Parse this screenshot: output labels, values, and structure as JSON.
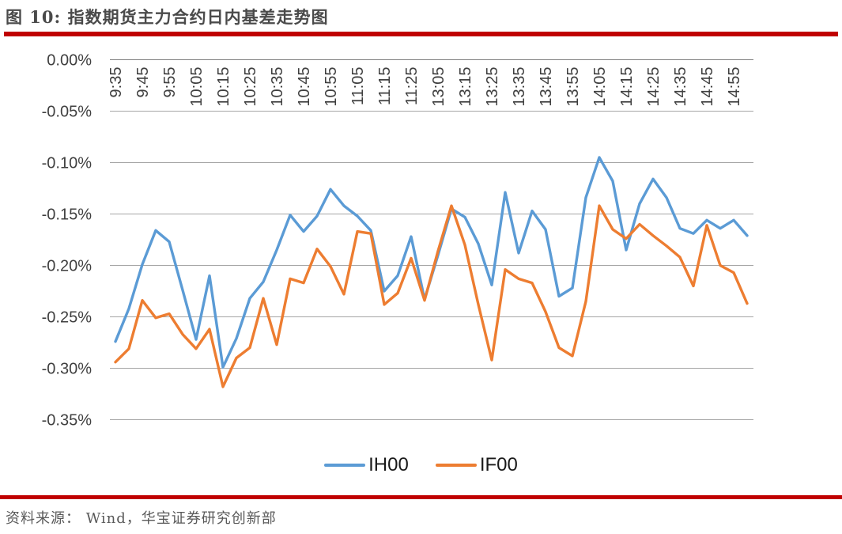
{
  "title": "图 10:  指数期货主力合约日内基差走势图",
  "source": "资料来源：  Wind，华宝证券研究创新部",
  "colors": {
    "rule_red": "#C00000",
    "ih00_blue": "#5B9BD5",
    "if00_orange": "#ED7D31",
    "gridline": "#A6A6A6",
    "zero_axis": "#808080",
    "axis_text": "#3f3f3f"
  },
  "legend": [
    {
      "label": "IH00",
      "color": "#5B9BD5"
    },
    {
      "label": "IF00",
      "color": "#ED7D31"
    }
  ],
  "chart_data": {
    "type": "line",
    "title": "图 10: 指数期货主力合约日内基差走势图",
    "xlabel": "",
    "ylabel": "",
    "grid": true,
    "legend_position": "bottom",
    "ylim": [
      -0.35,
      0.0
    ],
    "y_tick_labels": [
      "0.00%",
      "-0.05%",
      "-0.10%",
      "-0.15%",
      "-0.20%",
      "-0.25%",
      "-0.30%",
      "-0.35%"
    ],
    "y_tick_values": [
      0.0,
      -0.05,
      -0.1,
      -0.15,
      -0.2,
      -0.25,
      -0.3,
      -0.35
    ],
    "x": [
      "9:35",
      "9:40",
      "9:45",
      "9:50",
      "9:55",
      "10:00",
      "10:05",
      "10:10",
      "10:15",
      "10:20",
      "10:25",
      "10:30",
      "10:35",
      "10:40",
      "10:45",
      "10:50",
      "10:55",
      "11:00",
      "11:05",
      "11:10",
      "11:15",
      "11:20",
      "11:25",
      "11:30",
      "13:05",
      "13:10",
      "13:15",
      "13:20",
      "13:25",
      "13:30",
      "13:35",
      "13:40",
      "13:45",
      "13:50",
      "13:55",
      "14:00",
      "14:05",
      "14:10",
      "14:15",
      "14:20",
      "14:25",
      "14:30",
      "14:35",
      "14:40",
      "14:45",
      "14:50",
      "14:55",
      "15:00"
    ],
    "x_tick_every": 2,
    "x_tick_labels": [
      "9:35",
      "9:45",
      "9:55",
      "10:05",
      "10:15",
      "10:25",
      "10:35",
      "10:45",
      "10:55",
      "11:05",
      "11:15",
      "11:25",
      "13:05",
      "13:15",
      "13:25",
      "13:35",
      "13:45",
      "13:55",
      "14:05",
      "14:15",
      "14:25",
      "14:35",
      "14:45",
      "14:55"
    ],
    "series": [
      {
        "name": "IH00",
        "color": "#5B9BD5",
        "values": [
          -0.274,
          -0.242,
          -0.199,
          -0.166,
          -0.177,
          -0.224,
          -0.272,
          -0.21,
          -0.299,
          -0.271,
          -0.232,
          -0.216,
          -0.185,
          -0.151,
          -0.167,
          -0.152,
          -0.126,
          -0.142,
          -0.152,
          -0.166,
          -0.225,
          -0.21,
          -0.172,
          -0.233,
          -0.19,
          -0.145,
          -0.153,
          -0.179,
          -0.219,
          -0.129,
          -0.188,
          -0.147,
          -0.165,
          -0.23,
          -0.222,
          -0.134,
          -0.095,
          -0.118,
          -0.185,
          -0.14,
          -0.116,
          -0.134,
          -0.164,
          -0.169,
          -0.156,
          -0.164,
          -0.156,
          -0.171
        ]
      },
      {
        "name": "IF00",
        "color": "#ED7D31",
        "values": [
          -0.294,
          -0.281,
          -0.234,
          -0.251,
          -0.247,
          -0.267,
          -0.281,
          -0.262,
          -0.318,
          -0.29,
          -0.28,
          -0.232,
          -0.277,
          -0.213,
          -0.217,
          -0.184,
          -0.201,
          -0.228,
          -0.167,
          -0.169,
          -0.238,
          -0.227,
          -0.193,
          -0.234,
          -0.186,
          -0.142,
          -0.18,
          -0.238,
          -0.292,
          -0.204,
          -0.213,
          -0.217,
          -0.245,
          -0.28,
          -0.288,
          -0.235,
          -0.142,
          -0.165,
          -0.174,
          -0.16,
          -0.171,
          -0.181,
          -0.192,
          -0.22,
          -0.161,
          -0.2,
          -0.207,
          -0.237
        ]
      }
    ]
  }
}
